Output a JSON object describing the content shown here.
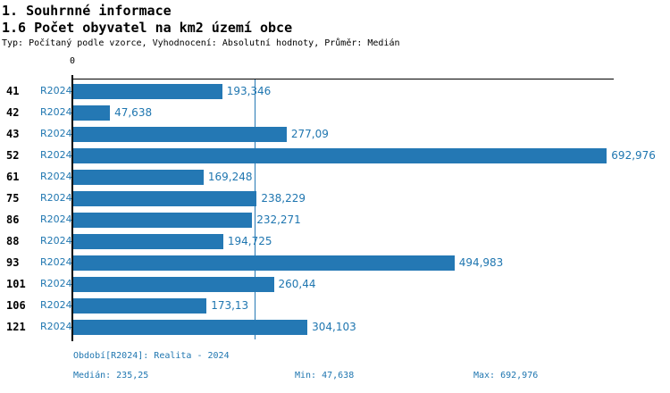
{
  "header": {
    "title1": "1. Souhrnné informace",
    "title2": "1.6 Počet obyvatel na km2 území obce",
    "subtitle": "Typ: Počítaný podle vzorce, Vyhodnocení: Absolutní hodnoty, Průměr: Medián"
  },
  "chart_data": {
    "type": "bar",
    "orientation": "horizontal",
    "title": "1.6 Počet obyvatel na km2 území obce",
    "categories": [
      "41",
      "42",
      "43",
      "52",
      "61",
      "75",
      "86",
      "88",
      "93",
      "101",
      "106",
      "121"
    ],
    "series_label": "R2024",
    "values": [
      193.346,
      47.638,
      277.09,
      692.976,
      169.248,
      238.229,
      232.271,
      194.725,
      494.983,
      260.44,
      173.13,
      304.103
    ],
    "value_labels": [
      "193,346",
      "47,638",
      "277,09",
      "692,976",
      "169,248",
      "238,229",
      "232,271",
      "194,725",
      "494,983",
      "260,44",
      "173,13",
      "304,103"
    ],
    "axis_origin_label": "0",
    "xlim": [
      0,
      702
    ],
    "median_value": 235.25,
    "grid": false,
    "legend": false,
    "bar_color": "#2478b4",
    "median_line_color": "#2478b4",
    "label_color": "#1f76b0"
  },
  "footer": {
    "period": "Období[R2024]: Realita - 2024",
    "median": "Medián: 235,25",
    "min": "Min: 47,638",
    "max": "Max: 692,976"
  }
}
